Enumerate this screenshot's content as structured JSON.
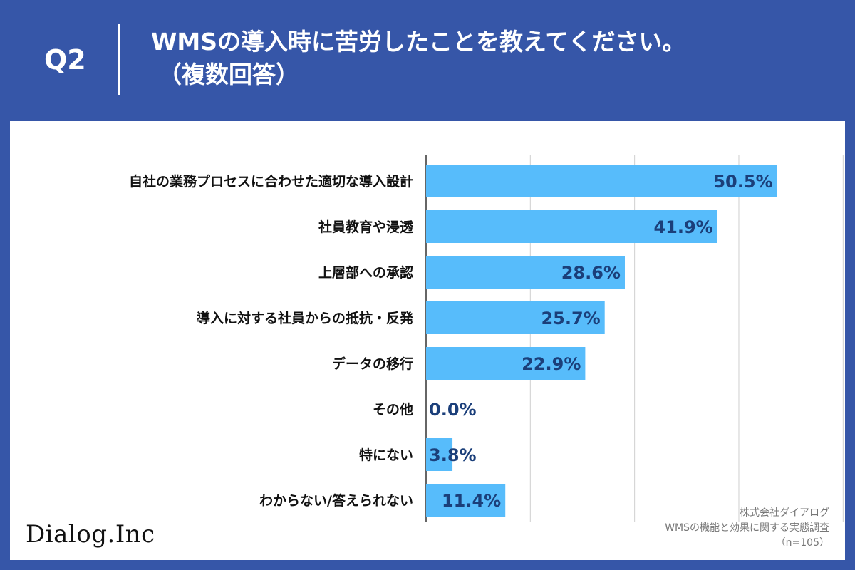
{
  "header": {
    "question_number": "Q2",
    "title_line1": "WMSの導入時に苦労したことを教えてください。",
    "title_line2": "（複数回答）"
  },
  "colors": {
    "background": "#3656a8",
    "panel": "#ffffff",
    "bar": "#57bcfb",
    "value_text": "#1b3f7a",
    "grid": "#cfcfcf",
    "axis": "#333333"
  },
  "chart_data": {
    "type": "bar",
    "orientation": "horizontal",
    "categories": [
      "自社の業務プロセスに合わせた適切な導入設計",
      "社員教育や浸透",
      "上層部への承認",
      "導入に対する社員からの抵抗・反発",
      "データの移行",
      "その他",
      "特にない",
      "わからない/答えられない"
    ],
    "values": [
      50.5,
      41.9,
      28.6,
      25.7,
      22.9,
      0.0,
      3.8,
      11.4
    ],
    "value_labels": [
      "50.5%",
      "41.9%",
      "28.6%",
      "25.7%",
      "22.9%",
      "0.0%",
      "3.8%",
      "11.4%"
    ],
    "xlim": [
      0,
      60
    ],
    "grid": true,
    "unit": "%"
  },
  "footer": {
    "logo": "Dialog.Inc",
    "company": "株式会社ダイアログ",
    "survey": "WMSの機能と効果に関する実態調査",
    "sample": "（n=105）"
  }
}
